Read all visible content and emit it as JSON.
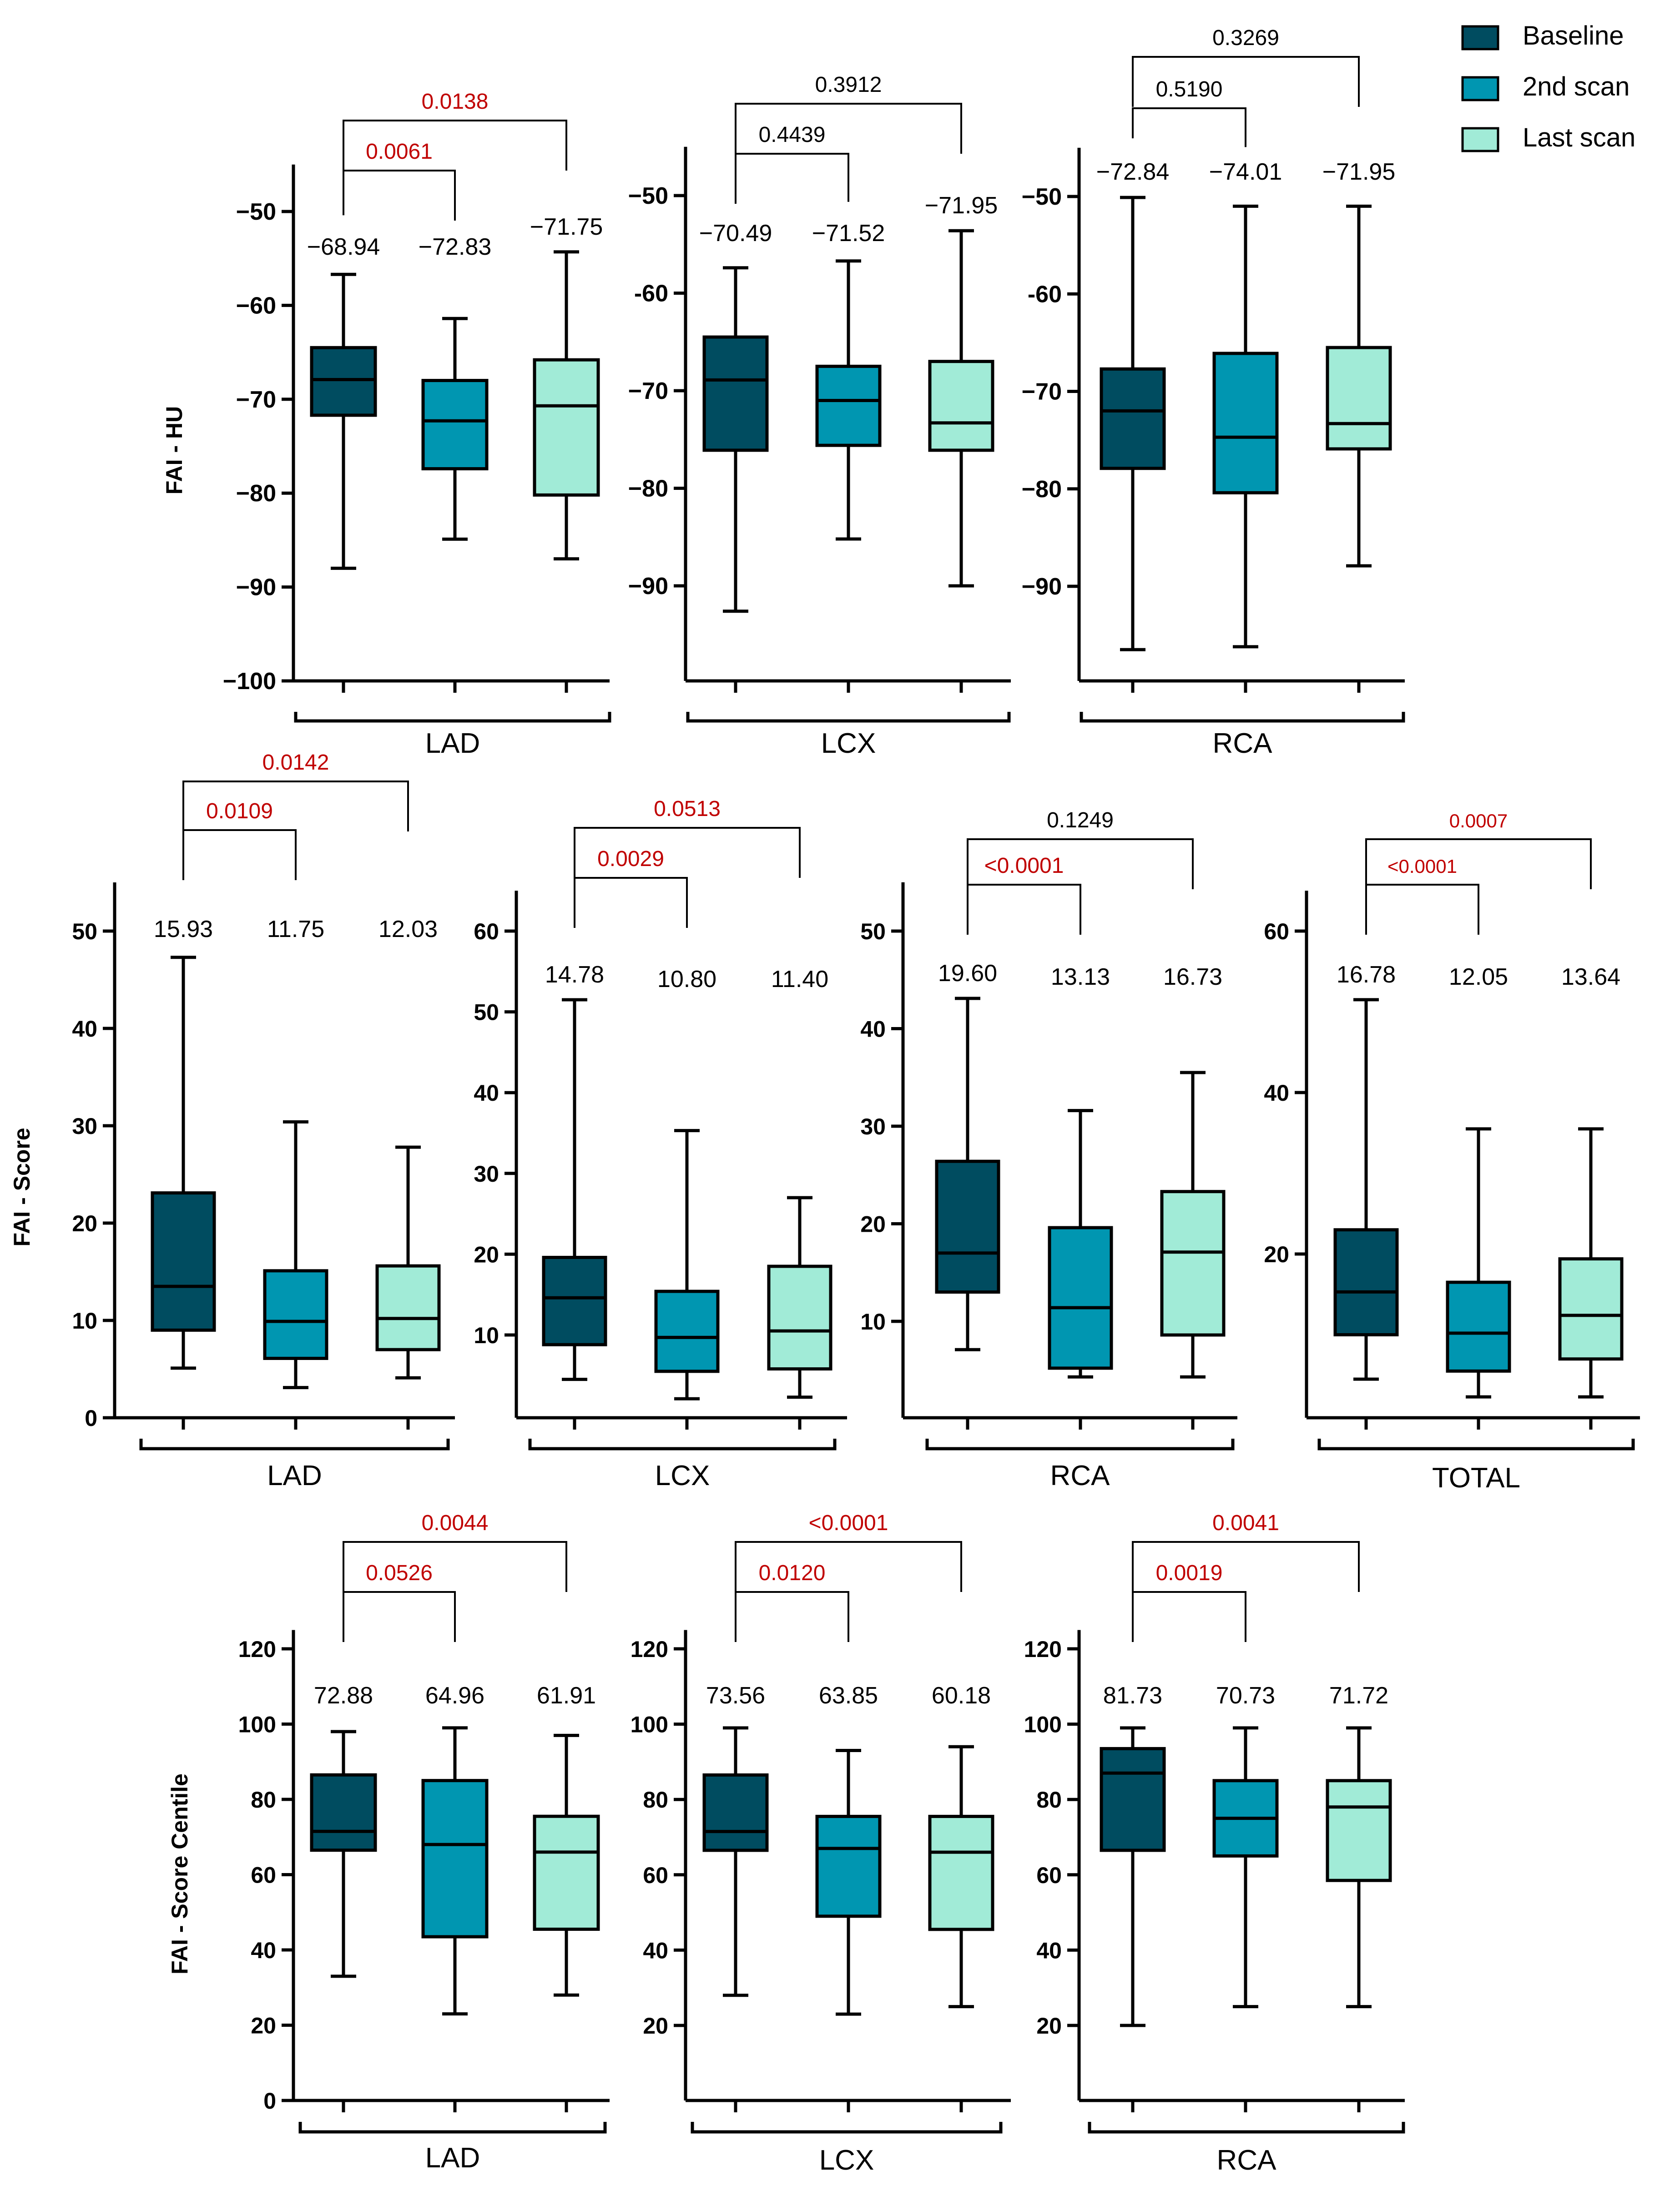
{
  "legend": {
    "entries": [
      {
        "label": "Baseline",
        "color": "#004c60"
      },
      {
        "label": "2nd scan",
        "color": "#0096b1"
      },
      {
        "label": "Last scan",
        "color": "#a1ebd7"
      }
    ]
  },
  "colors": {
    "baseline": "#004c60",
    "second": "#0096b1",
    "last": "#a1ebd7",
    "sig": "#c00000",
    "ns": "#000000",
    "line": "#000000"
  },
  "chart_data": [
    {
      "type": "boxplot",
      "row": "FAI - HU",
      "ylabel": "FAI - HU",
      "group": "LAD",
      "ylim": [
        -100,
        -45
      ],
      "yticks": [
        -50,
        -60,
        -70,
        -80,
        -90,
        -100
      ],
      "ytick_labels": [
        "−50",
        "−60",
        "−70",
        "−80",
        "−90",
        "−100"
      ],
      "boxes": [
        {
          "series": "Baseline",
          "whisker_low": -88,
          "q1": -71.7,
          "median": -67.9,
          "q3": -64.5,
          "whisker_high": -56.7,
          "mean_label": "−68.94"
        },
        {
          "series": "2nd scan",
          "whisker_low": -84.9,
          "q1": -77.4,
          "median": -72.3,
          "q3": -68,
          "whisker_high": -61.4,
          "mean_label": "−72.83"
        },
        {
          "series": "Last scan",
          "whisker_low": -87,
          "q1": -80.2,
          "median": -70.7,
          "q3": -65.8,
          "whisker_high": -54.3,
          "mean_label": "−71.75"
        }
      ],
      "comparisons": [
        {
          "from": 0,
          "to": 1,
          "p": "0.0061",
          "significant": true
        },
        {
          "from": 0,
          "to": 2,
          "p": "0.0138",
          "significant": true
        }
      ]
    },
    {
      "type": "boxplot",
      "row": "FAI - HU",
      "group": "LCX",
      "ylim": [
        -100,
        -45
      ],
      "yticks": [
        -50,
        -60,
        -70,
        -80,
        -90
      ],
      "ytick_labels": [
        "−50",
        "-60",
        "−70",
        "−80",
        "−90"
      ],
      "boxes": [
        {
          "series": "Baseline",
          "whisker_low": -92.6,
          "q1": -76.1,
          "median": -68.9,
          "q3": -64.5,
          "whisker_high": -57.4,
          "mean_label": "−70.49"
        },
        {
          "series": "2nd scan",
          "whisker_low": -85.2,
          "q1": -75.6,
          "median": -71,
          "q3": -67.5,
          "whisker_high": -56.7,
          "mean_label": "−71.52"
        },
        {
          "series": "Last scan",
          "whisker_low": -90,
          "q1": -76.1,
          "median": -73.3,
          "q3": -67,
          "whisker_high": -53.6,
          "mean_label": "−71.95"
        }
      ],
      "comparisons": [
        {
          "from": 0,
          "to": 1,
          "p": "0.4439",
          "significant": false
        },
        {
          "from": 0,
          "to": 2,
          "p": "0.3912",
          "significant": false
        }
      ]
    },
    {
      "type": "boxplot",
      "row": "FAI - HU",
      "group": "RCA",
      "ylim": [
        -100,
        -45
      ],
      "yticks": [
        -50,
        -60,
        -70,
        -80,
        -90
      ],
      "ytick_labels": [
        "−50",
        "-60",
        "−70",
        "−80",
        "−90"
      ],
      "boxes": [
        {
          "series": "Baseline",
          "whisker_low": -96.5,
          "q1": -77.9,
          "median": -72,
          "q3": -67.7,
          "whisker_high": -50.1,
          "mean_label": "−72.84"
        },
        {
          "series": "2nd scan",
          "whisker_low": -96.2,
          "q1": -80.4,
          "median": -74.7,
          "q3": -66.1,
          "whisker_high": -51,
          "mean_label": "−74.01"
        },
        {
          "series": "Last scan",
          "whisker_low": -87.9,
          "q1": -75.9,
          "median": -73.3,
          "q3": -65.5,
          "whisker_high": -51,
          "mean_label": "−71.95"
        }
      ],
      "comparisons": [
        {
          "from": 0,
          "to": 1,
          "p": "0.5190",
          "significant": false
        },
        {
          "from": 0,
          "to": 2,
          "p": "0.3269",
          "significant": false
        }
      ]
    },
    {
      "type": "boxplot",
      "row": "FAI - Score",
      "ylabel": "FAI - Score",
      "group": "LAD",
      "ylim": [
        0,
        55
      ],
      "yticks": [
        0,
        10,
        20,
        30,
        40,
        50
      ],
      "ytick_labels": [
        "0",
        "10",
        "20",
        "30",
        "40",
        "50"
      ],
      "boxes": [
        {
          "series": "Baseline",
          "whisker_low": 5.1,
          "q1": 9,
          "median": 13.5,
          "q3": 23.1,
          "whisker_high": 47.3,
          "mean_label": "15.93"
        },
        {
          "series": "2nd scan",
          "whisker_low": 3.1,
          "q1": 6.1,
          "median": 9.9,
          "q3": 15.1,
          "whisker_high": 30.4,
          "mean_label": "11.75"
        },
        {
          "series": "Last scan",
          "whisker_low": 4.1,
          "q1": 7,
          "median": 10.2,
          "q3": 15.6,
          "whisker_high": 27.8,
          "mean_label": "12.03"
        }
      ],
      "comparisons": [
        {
          "from": 0,
          "to": 1,
          "p": "0.0109",
          "significant": true
        },
        {
          "from": 0,
          "to": 2,
          "p": "0.0142",
          "significant": true
        }
      ]
    },
    {
      "type": "boxplot",
      "row": "FAI - Score",
      "group": "LCX",
      "ylim": [
        0,
        65
      ],
      "yticks": [
        10,
        20,
        30,
        40,
        50,
        60
      ],
      "ytick_labels": [
        "10",
        "20",
        "30",
        "40",
        "50",
        "60"
      ],
      "boxes": [
        {
          "series": "Baseline",
          "whisker_low": 4.5,
          "q1": 8.8,
          "median": 14.6,
          "q3": 19.6,
          "whisker_high": 51.5,
          "mean_label": "14.78"
        },
        {
          "series": "2nd scan",
          "whisker_low": 2.1,
          "q1": 5.5,
          "median": 9.7,
          "q3": 15.4,
          "whisker_high": 35.3,
          "mean_label": "10.80"
        },
        {
          "series": "Last scan",
          "whisker_low": 2.3,
          "q1": 5.8,
          "median": 10.5,
          "q3": 18.5,
          "whisker_high": 27,
          "mean_label": "11.40"
        }
      ],
      "comparisons": [
        {
          "from": 0,
          "to": 1,
          "p": "0.0029",
          "significant": true
        },
        {
          "from": 0,
          "to": 2,
          "p": "0.0513",
          "significant": true
        }
      ]
    },
    {
      "type": "boxplot",
      "row": "FAI - Score",
      "group": "RCA",
      "ylim": [
        0,
        55
      ],
      "yticks": [
        10,
        20,
        30,
        40,
        50
      ],
      "ytick_labels": [
        "10",
        "20",
        "30",
        "40",
        "50"
      ],
      "boxes": [
        {
          "series": "Baseline",
          "whisker_low": 7.1,
          "q1": 13,
          "median": 17,
          "q3": 26.4,
          "whisker_high": 43.1,
          "mean_label": "19.60"
        },
        {
          "series": "2nd scan",
          "whisker_low": 4.3,
          "q1": 5.2,
          "median": 11.4,
          "q3": 19.6,
          "whisker_high": 31.6,
          "mean_label": "13.13"
        },
        {
          "series": "Last scan",
          "whisker_low": 4.3,
          "q1": 8.6,
          "median": 17.1,
          "q3": 23.3,
          "whisker_high": 35.5,
          "mean_label": "16.73"
        }
      ],
      "comparisons": [
        {
          "from": 0,
          "to": 1,
          "p": "<0.0001",
          "significant": true
        },
        {
          "from": 0,
          "to": 2,
          "p": "0.1249",
          "significant": false
        }
      ]
    },
    {
      "type": "boxplot",
      "row": "FAI - Score",
      "group": "TOTAL",
      "ylim": [
        0,
        65
      ],
      "yticks": [
        20,
        40,
        60
      ],
      "ytick_labels": [
        "20",
        "40",
        "60"
      ],
      "boxes": [
        {
          "series": "Baseline",
          "whisker_low": 4.5,
          "q1": 10,
          "median": 15.3,
          "q3": 23,
          "whisker_high": 51.5,
          "mean_label": "16.78"
        },
        {
          "series": "2nd scan",
          "whisker_low": 2.3,
          "q1": 5.5,
          "median": 10.2,
          "q3": 16.5,
          "whisker_high": 35.5,
          "mean_label": "12.05"
        },
        {
          "series": "Last scan",
          "whisker_low": 2.3,
          "q1": 7,
          "median": 12.4,
          "q3": 19.4,
          "whisker_high": 35.5,
          "mean_label": "13.64"
        }
      ],
      "comparisons": [
        {
          "from": 0,
          "to": 1,
          "p": "<0.0001",
          "significant": true
        },
        {
          "from": 0,
          "to": 2,
          "p": "0.0007",
          "significant": true
        }
      ]
    },
    {
      "type": "boxplot",
      "row": "FAI - Score Centile",
      "ylabel": "FAI - Score Centile",
      "group": "LAD",
      "ylim": [
        0,
        125
      ],
      "yticks": [
        0,
        20,
        40,
        60,
        80,
        100,
        120
      ],
      "ytick_labels": [
        "0",
        "20",
        "40",
        "60",
        "80",
        "100",
        "120"
      ],
      "boxes": [
        {
          "series": "Baseline",
          "whisker_low": 33,
          "q1": 66.5,
          "median": 71.5,
          "q3": 86.5,
          "whisker_high": 98,
          "mean_label": "72.88"
        },
        {
          "series": "2nd scan",
          "whisker_low": 23,
          "q1": 43.5,
          "median": 68,
          "q3": 85,
          "whisker_high": 99,
          "mean_label": "64.96"
        },
        {
          "series": "Last scan",
          "whisker_low": 28,
          "q1": 45.5,
          "median": 66,
          "q3": 75.5,
          "whisker_high": 97,
          "mean_label": "61.91"
        }
      ],
      "comparisons": [
        {
          "from": 0,
          "to": 1,
          "p": "0.0526",
          "significant": true
        },
        {
          "from": 0,
          "to": 2,
          "p": "0.0044",
          "significant": true
        }
      ]
    },
    {
      "type": "boxplot",
      "row": "FAI - Score Centile",
      "group": "LCX",
      "ylim": [
        0,
        125
      ],
      "yticks": [
        20,
        40,
        60,
        80,
        100,
        120
      ],
      "ytick_labels": [
        "20",
        "40",
        "60",
        "80",
        "100",
        "120"
      ],
      "boxes": [
        {
          "series": "Baseline",
          "whisker_low": 28,
          "q1": 66.5,
          "median": 71.5,
          "q3": 86.5,
          "whisker_high": 99,
          "mean_label": "73.56"
        },
        {
          "series": "2nd scan",
          "whisker_low": 23,
          "q1": 49,
          "median": 67,
          "q3": 75.5,
          "whisker_high": 93,
          "mean_label": "63.85"
        },
        {
          "series": "Last scan",
          "whisker_low": 25,
          "q1": 45.5,
          "median": 66,
          "q3": 75.5,
          "whisker_high": 94,
          "mean_label": "60.18"
        }
      ],
      "comparisons": [
        {
          "from": 0,
          "to": 1,
          "p": "0.0120",
          "significant": true
        },
        {
          "from": 0,
          "to": 2,
          "p": "<0.0001",
          "significant": true
        }
      ]
    },
    {
      "type": "boxplot",
      "row": "FAI - Score Centile",
      "group": "RCA",
      "ylim": [
        0,
        125
      ],
      "yticks": [
        20,
        40,
        60,
        80,
        100,
        120
      ],
      "ytick_labels": [
        "20",
        "40",
        "60",
        "80",
        "100",
        "120"
      ],
      "boxes": [
        {
          "series": "Baseline",
          "whisker_low": 20,
          "q1": 66.5,
          "median": 87,
          "q3": 93.5,
          "whisker_high": 99,
          "mean_label": "81.73"
        },
        {
          "series": "2nd scan",
          "whisker_low": 25,
          "q1": 65,
          "median": 75,
          "q3": 85,
          "whisker_high": 99,
          "mean_label": "70.73"
        },
        {
          "series": "Last scan",
          "whisker_low": 25,
          "q1": 58.5,
          "median": 78,
          "q3": 85,
          "whisker_high": 99,
          "mean_label": "71.72"
        }
      ],
      "comparisons": [
        {
          "from": 0,
          "to": 1,
          "p": "0.0019",
          "significant": true
        },
        {
          "from": 0,
          "to": 2,
          "p": "0.0041",
          "significant": true
        }
      ]
    }
  ]
}
